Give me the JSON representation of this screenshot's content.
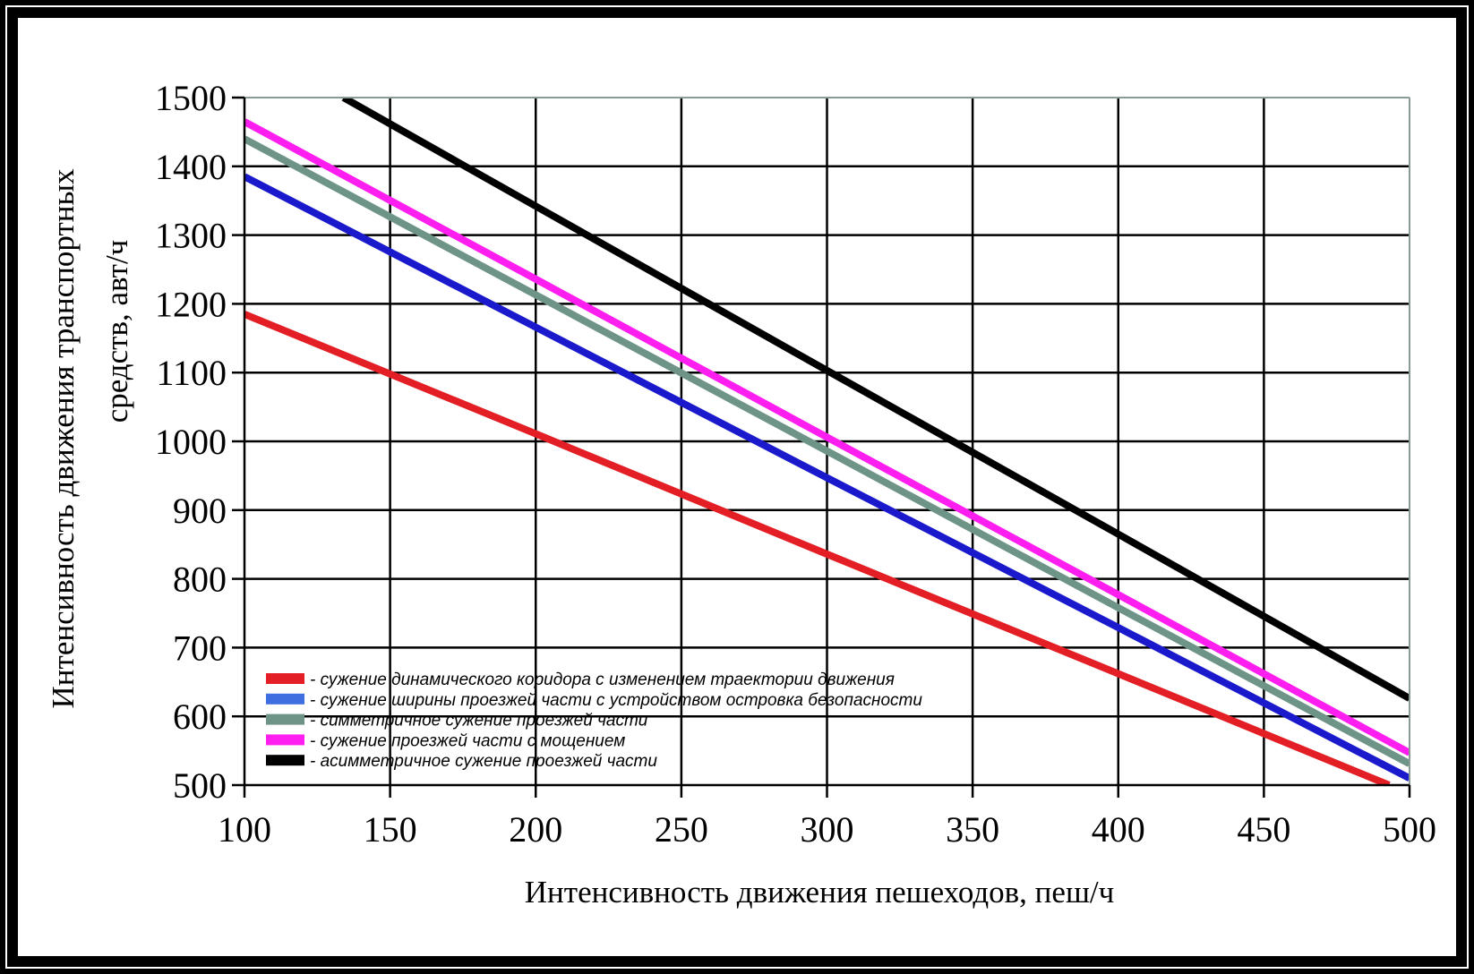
{
  "chart_data": {
    "type": "line",
    "title": "",
    "xlabel": "Интенсивность движения пешеходов, пеш/ч",
    "ylabel_lines": [
      "Интенсивность движения транспортных",
      "средств, авт/ч"
    ],
    "ylabel": "Интенсивность движения транспортных средств, авт/ч",
    "xlim": [
      100,
      500
    ],
    "ylim": [
      500,
      1500
    ],
    "xticks": [
      100,
      150,
      200,
      250,
      300,
      350,
      400,
      450,
      500
    ],
    "yticks": [
      500,
      600,
      700,
      800,
      900,
      1000,
      1100,
      1200,
      1300,
      1400,
      1500
    ],
    "grid": true,
    "legend_position": "lower-left inside",
    "series": [
      {
        "name": "- сужение динамического коридора с изменением траектории движения",
        "color": "#e31e24",
        "swatch_color": "#e31e24",
        "x": [
          100,
          200,
          300,
          400,
          493
        ],
        "y": [
          1185,
          1011,
          836,
          662,
          500
        ]
      },
      {
        "name": "- сужение ширины проезжей части с устройством островка безопасности",
        "color": "#1a1acc",
        "swatch_color": "#3f6ee0",
        "x": [
          100,
          200,
          300,
          400,
          500
        ],
        "y": [
          1385,
          1166,
          947,
          729,
          510
        ]
      },
      {
        "name": "- симметричное сужение проезжей части",
        "color": "#6e9488",
        "swatch_color": "#6e9488",
        "x": [
          100,
          200,
          300,
          400,
          500
        ],
        "y": [
          1440,
          1213,
          986,
          758,
          531
        ]
      },
      {
        "name": "- сужение проезжей части с мощением",
        "color": "#ff1ef0",
        "swatch_color": "#ff1ef0",
        "x": [
          100,
          200,
          300,
          400,
          500
        ],
        "y": [
          1465,
          1236,
          1006,
          777,
          547
        ]
      },
      {
        "name": "- асимметричное сужение проезжей части",
        "color": "#000000",
        "swatch_color": "#000000",
        "x": [
          134,
          200,
          300,
          400,
          500
        ],
        "y": [
          1500,
          1342,
          1103,
          865,
          626
        ]
      }
    ]
  }
}
